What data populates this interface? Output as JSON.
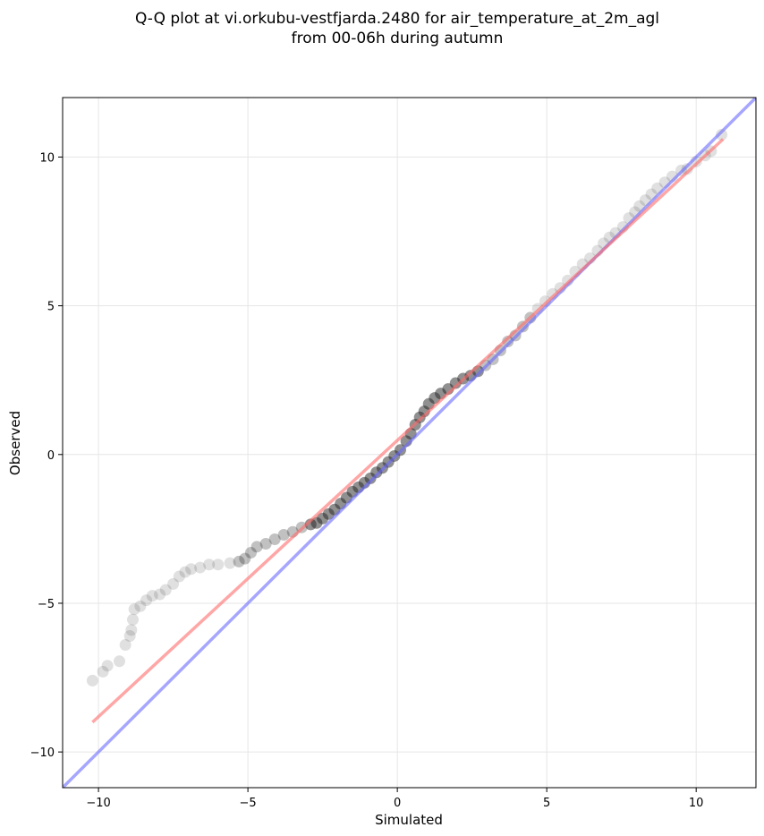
{
  "chart_data": {
    "type": "scatter",
    "title_lines": [
      "Q-Q plot at vi.orkubu-vestfjarda.2480 for air_temperature_at_2m_agl",
      "from 00-06h during autumn"
    ],
    "xlabel": "Simulated",
    "ylabel": "Observed",
    "xlim": [
      -11.2,
      12.0
    ],
    "ylim": [
      -11.2,
      12.0
    ],
    "xticks": [
      -10,
      -5,
      0,
      5,
      10
    ],
    "yticks": [
      -10,
      -5,
      0,
      5,
      10
    ],
    "xtick_labels": [
      "−10",
      "−5",
      "0",
      "5",
      "10"
    ],
    "ytick_labels": [
      "−10",
      "−5",
      "0",
      "5",
      "10"
    ],
    "grid": true,
    "colors": {
      "points": "#222222",
      "identity_line": "#6b6bff",
      "fit_line": "#ff6b6b"
    },
    "lines": [
      {
        "kind": "identity",
        "x": [
          -11.2,
          12.0
        ],
        "y": [
          -11.2,
          12.0
        ]
      },
      {
        "kind": "fit",
        "x": [
          -10.2,
          10.9
        ],
        "y": [
          -9.0,
          10.6
        ]
      }
    ],
    "quantiles": [
      [
        -10.2,
        -7.6
      ],
      [
        -9.85,
        -7.3
      ],
      [
        -9.7,
        -7.1
      ],
      [
        -9.3,
        -6.95
      ],
      [
        -9.1,
        -6.4
      ],
      [
        -8.95,
        -6.1
      ],
      [
        -8.9,
        -5.9
      ],
      [
        -8.85,
        -5.55
      ],
      [
        -8.8,
        -5.2
      ],
      [
        -8.6,
        -5.1
      ],
      [
        -8.4,
        -4.9
      ],
      [
        -8.2,
        -4.75
      ],
      [
        -7.95,
        -4.7
      ],
      [
        -7.75,
        -4.55
      ],
      [
        -7.5,
        -4.35
      ],
      [
        -7.3,
        -4.1
      ],
      [
        -7.1,
        -3.95
      ],
      [
        -6.9,
        -3.85
      ],
      [
        -6.6,
        -3.8
      ],
      [
        -6.3,
        -3.7
      ],
      [
        -6.0,
        -3.7
      ],
      [
        -5.6,
        -3.65
      ],
      [
        -5.3,
        -3.6
      ],
      [
        -5.1,
        -3.5
      ],
      [
        -4.9,
        -3.3
      ],
      [
        -4.7,
        -3.1
      ],
      [
        -4.4,
        -3.0
      ],
      [
        -4.1,
        -2.85
      ],
      [
        -3.8,
        -2.7
      ],
      [
        -3.5,
        -2.6
      ],
      [
        -3.2,
        -2.45
      ],
      [
        -2.9,
        -2.35
      ],
      [
        -2.7,
        -2.3
      ],
      [
        -2.5,
        -2.15
      ],
      [
        -2.3,
        -2.0
      ],
      [
        -2.1,
        -1.85
      ],
      [
        -1.9,
        -1.65
      ],
      [
        -1.7,
        -1.45
      ],
      [
        -1.5,
        -1.25
      ],
      [
        -1.3,
        -1.1
      ],
      [
        -1.1,
        -0.95
      ],
      [
        -0.9,
        -0.8
      ],
      [
        -0.7,
        -0.6
      ],
      [
        -0.5,
        -0.45
      ],
      [
        -0.3,
        -0.25
      ],
      [
        -0.1,
        -0.05
      ],
      [
        0.1,
        0.15
      ],
      [
        0.3,
        0.45
      ],
      [
        0.45,
        0.7
      ],
      [
        0.6,
        1.0
      ],
      [
        0.75,
        1.25
      ],
      [
        0.9,
        1.45
      ],
      [
        1.05,
        1.7
      ],
      [
        1.25,
        1.9
      ],
      [
        1.45,
        2.05
      ],
      [
        1.7,
        2.2
      ],
      [
        1.95,
        2.4
      ],
      [
        2.2,
        2.55
      ],
      [
        2.45,
        2.65
      ],
      [
        2.7,
        2.8
      ],
      [
        2.95,
        3.0
      ],
      [
        3.2,
        3.2
      ],
      [
        3.45,
        3.5
      ],
      [
        3.7,
        3.8
      ],
      [
        3.95,
        4.0
      ],
      [
        4.2,
        4.3
      ],
      [
        4.45,
        4.6
      ],
      [
        4.7,
        4.9
      ],
      [
        4.95,
        5.15
      ],
      [
        5.2,
        5.4
      ],
      [
        5.45,
        5.6
      ],
      [
        5.7,
        5.85
      ],
      [
        5.95,
        6.15
      ],
      [
        6.2,
        6.4
      ],
      [
        6.45,
        6.6
      ],
      [
        6.7,
        6.85
      ],
      [
        6.9,
        7.1
      ],
      [
        7.1,
        7.3
      ],
      [
        7.3,
        7.45
      ],
      [
        7.55,
        7.65
      ],
      [
        7.75,
        7.95
      ],
      [
        7.95,
        8.15
      ],
      [
        8.1,
        8.35
      ],
      [
        8.3,
        8.55
      ],
      [
        8.5,
        8.75
      ],
      [
        8.7,
        8.95
      ],
      [
        8.95,
        9.15
      ],
      [
        9.2,
        9.35
      ],
      [
        9.5,
        9.55
      ],
      [
        9.7,
        9.6
      ],
      [
        10.0,
        9.85
      ],
      [
        10.3,
        10.05
      ],
      [
        10.5,
        10.2
      ],
      [
        10.85,
        10.75
      ]
    ]
  }
}
